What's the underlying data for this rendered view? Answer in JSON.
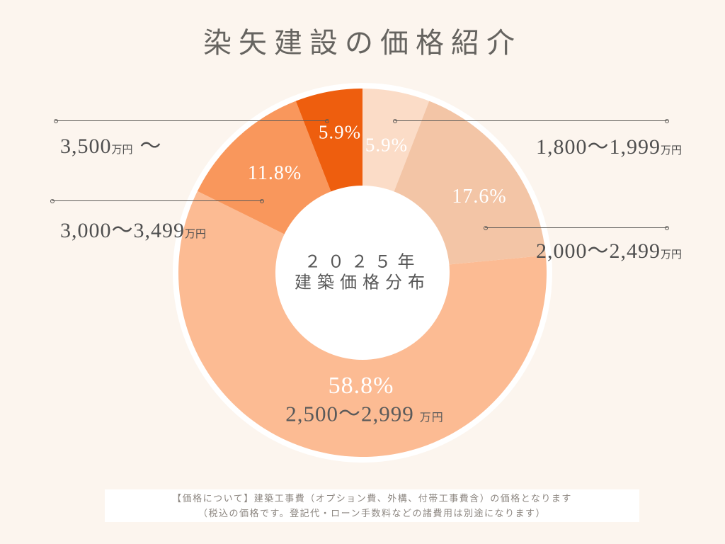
{
  "page": {
    "title": "染矢建設の価格紹介"
  },
  "chart_data": {
    "type": "pie",
    "subtype": "donut",
    "title": "2025年 建築価格分布",
    "center_label": {
      "line1": "２０２５年",
      "line2": "建築価格分布"
    },
    "start_angle_deg": 0,
    "direction": "clockwise",
    "legend": "none",
    "unit": "万円",
    "segments": [
      {
        "label": "1,800～1,999",
        "unit": "万円",
        "suffix": "",
        "value_pct": 5.9,
        "pct_label": "5.9%",
        "color": "#FBDCC7"
      },
      {
        "label": "2,000～2,499",
        "unit": "万円",
        "suffix": "",
        "value_pct": 17.6,
        "pct_label": "17.6%",
        "color": "#F3C5A6"
      },
      {
        "label": "2,500～2,999",
        "unit": "万円",
        "suffix": "",
        "value_pct": 58.8,
        "pct_label": "58.8%",
        "color": "#FCBB93"
      },
      {
        "label": "3,000～3,499",
        "unit": "万円",
        "suffix": "",
        "value_pct": 11.8,
        "pct_label": "11.8%",
        "color": "#F9975C"
      },
      {
        "label": "3,500",
        "unit": "万円",
        "suffix": "～",
        "value_pct": 5.9,
        "pct_label": "5.9%",
        "color": "#EE5E0E"
      }
    ],
    "colors": {
      "background": "#FCF5EE",
      "ring_outline": "#FFFFFF",
      "inner_hole": "#FFFFFF"
    }
  },
  "footer": {
    "line1": "【価格について】建築工事費（オプション費、外構、付帯工事費含）の価格となります",
    "line2": "（税込の価格です。登記代・ローン手数料などの諸費用は別途になります）"
  }
}
